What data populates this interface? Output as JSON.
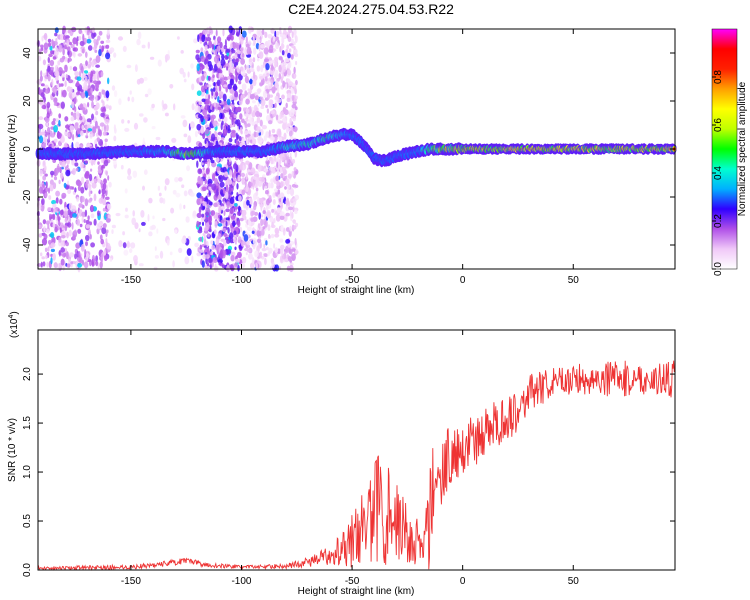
{
  "title": "C2E4.2024.275.04.53.R22",
  "chart_data": [
    {
      "type": "heatmap",
      "xlabel": "Height of straight line (km)",
      "ylabel": "Frequency (Hz)",
      "xlim": [
        -192,
        96
      ],
      "ylim": [
        -50,
        50
      ],
      "xticks": [
        -150,
        -100,
        -50,
        0,
        50
      ],
      "yticks": [
        -40,
        -20,
        0,
        20,
        40
      ],
      "grid": false,
      "colorbar": {
        "label": "Normalized spectral amplitude",
        "range": [
          0,
          1
        ],
        "ticks": [
          0.0,
          0.2,
          0.4,
          0.6,
          0.8
        ],
        "colors": [
          "#ffffff",
          "#f0c8f8",
          "#b050e8",
          "#3000ff",
          "#00b0ff",
          "#00ffd0",
          "#00ff00",
          "#c0ff00",
          "#ffff00",
          "#ffa000",
          "#ff2000",
          "#ff0000",
          "#ff00ff"
        ]
      },
      "ridge": {
        "x": [
          -192,
          -170,
          -150,
          -135,
          -125,
          -110,
          -100,
          -90,
          -80,
          -70,
          -60,
          -55,
          -50,
          -45,
          -40,
          -35,
          -30,
          -25,
          -20,
          -15,
          -10,
          0,
          10,
          20,
          40,
          60,
          80,
          96
        ],
        "frequency": [
          -2,
          -2,
          -1,
          -1,
          -2,
          -1,
          -1,
          -1,
          1,
          2,
          5,
          6,
          6,
          2,
          -4,
          -5,
          -3,
          -2,
          -1,
          0,
          0,
          0,
          0,
          0,
          0,
          0,
          0,
          0
        ],
        "amplitude": [
          0.3,
          0.3,
          0.35,
          0.45,
          0.75,
          0.35,
          0.4,
          0.35,
          0.5,
          0.55,
          0.55,
          0.45,
          0.35,
          0.3,
          0.25,
          0.25,
          0.3,
          0.35,
          0.4,
          0.6,
          0.75,
          0.8,
          0.8,
          0.8,
          0.8,
          0.8,
          0.8,
          0.8
        ]
      },
      "scatter_regions": [
        {
          "x": [
            -192,
            -160
          ],
          "density": "high",
          "amplitude": 0.12
        },
        {
          "x": [
            -160,
            -120
          ],
          "density": "low",
          "amplitude": 0.05
        },
        {
          "x": [
            -120,
            -100
          ],
          "density": "high",
          "amplitude": 0.15
        },
        {
          "x": [
            -100,
            -75
          ],
          "density": "high",
          "amplitude": 0.08
        }
      ]
    },
    {
      "type": "line",
      "xlabel": "Height of straight line (km)",
      "ylabel": "SNR (10 * v/v)",
      "multiplier": "(x10",
      "multiplier_exp": "4",
      "multiplier_close": ")",
      "xlim": [
        -192,
        96
      ],
      "ylim": [
        0,
        2.45
      ],
      "xticks": [
        -150,
        -100,
        -50,
        0,
        50
      ],
      "yticks": [
        0.0,
        0.5,
        1.0,
        1.5,
        2.0
      ],
      "grid": false,
      "series": [
        {
          "color": "#ee3333",
          "envelope": {
            "x": [
              -192,
              -150,
              -140,
              -130,
              -125,
              -115,
              -100,
              -80,
              -70,
              -60,
              -55,
              -50,
              -45,
              -40,
              -38,
              -35,
              -33,
              -30,
              -25,
              -22,
              -20,
              -17,
              -15,
              -13,
              -10,
              -5,
              0,
              5,
              10,
              15,
              20,
              25,
              30,
              40,
              50,
              60,
              70,
              80,
              90,
              96
            ],
            "base": [
              0.02,
              0.03,
              0.05,
              0.08,
              0.09,
              0.05,
              0.03,
              0.04,
              0.08,
              0.15,
              0.25,
              0.3,
              0.45,
              0.55,
              0.7,
              0.6,
              0.7,
              0.5,
              0.35,
              0.3,
              0.3,
              0.25,
              0.5,
              0.9,
              1.0,
              1.2,
              1.25,
              1.3,
              1.4,
              1.5,
              1.55,
              1.65,
              1.8,
              1.9,
              1.95,
              1.95,
              1.95,
              1.95,
              1.95,
              1.95
            ],
            "spread": [
              0.02,
              0.03,
              0.03,
              0.04,
              0.04,
              0.03,
              0.02,
              0.03,
              0.06,
              0.12,
              0.25,
              0.35,
              0.45,
              0.65,
              0.8,
              0.7,
              0.8,
              0.55,
              0.4,
              0.35,
              0.3,
              0.3,
              0.9,
              0.6,
              0.45,
              0.4,
              0.35,
              0.35,
              0.3,
              0.3,
              0.3,
              0.3,
              0.25,
              0.2,
              0.2,
              0.2,
              0.25,
              0.2,
              0.2,
              0.25
            ]
          }
        }
      ]
    }
  ]
}
